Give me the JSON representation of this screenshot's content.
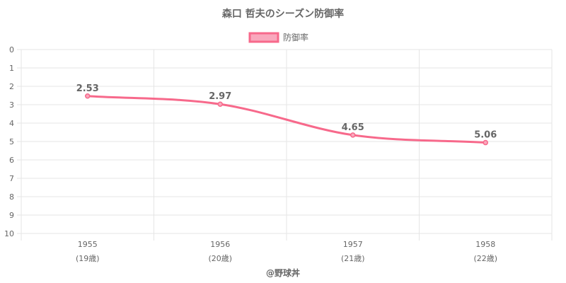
{
  "chart_data": {
    "type": "line",
    "title": "森口 哲夫のシーズン防御率",
    "legend": {
      "label": "防御率",
      "placement": "top-center"
    },
    "categories": [
      "1955",
      "1956",
      "1957",
      "1958"
    ],
    "sublabels": [
      "(19歳)",
      "(20歳)",
      "(21歳)",
      "(22歳)"
    ],
    "series": [
      {
        "name": "防御率",
        "values": [
          2.53,
          2.97,
          4.65,
          5.06
        ],
        "labels": [
          "2.53",
          "2.97",
          "4.65",
          "5.06"
        ]
      }
    ],
    "y_ticks": [
      "0",
      "1",
      "2",
      "3",
      "4",
      "5",
      "6",
      "7",
      "8",
      "9",
      "10"
    ],
    "ylim": [
      0,
      10
    ],
    "y_reversed": true,
    "grid": true,
    "colors": {
      "line": "#f7698b",
      "fill": "#f9a8bd",
      "grid": "#e5e5e5"
    }
  },
  "credit": "@野球丼"
}
